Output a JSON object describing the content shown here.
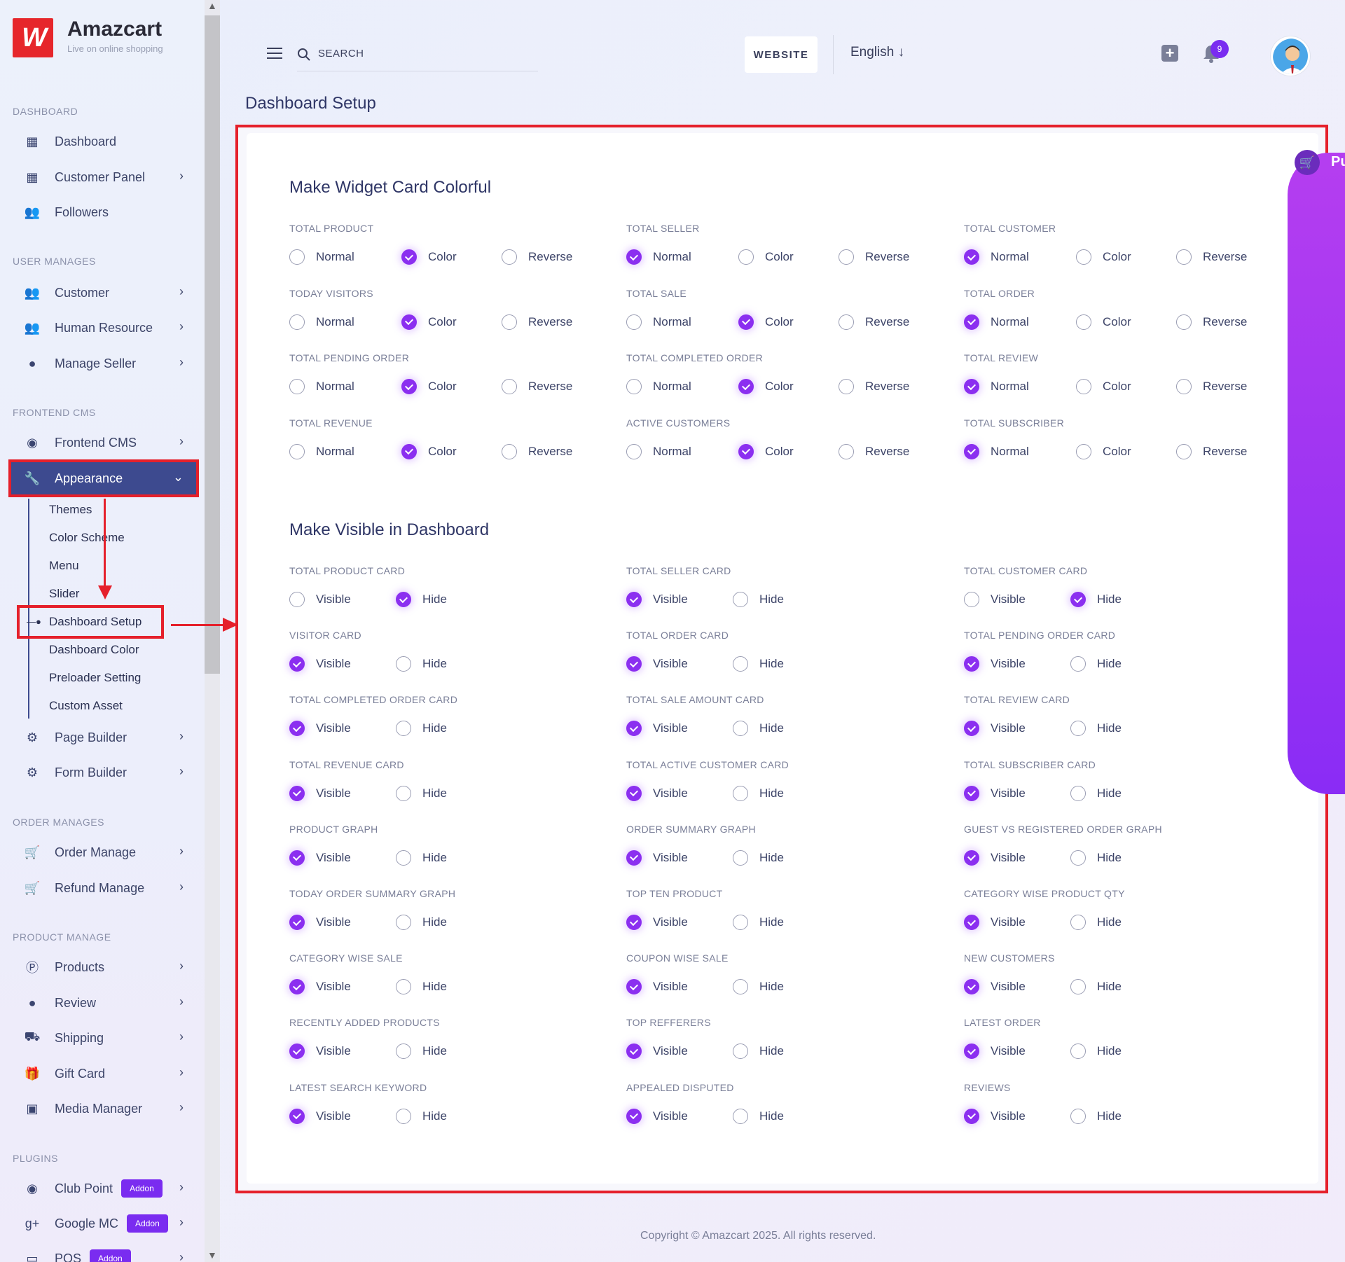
{
  "brand": {
    "name": "Amazcart",
    "tagline": "Live on online shopping",
    "logo_mark": "W"
  },
  "sidebar": {
    "sections": [
      {
        "title": "DASHBOARD",
        "items": [
          {
            "label": "Dashboard",
            "icon": "grid-icon"
          },
          {
            "label": "Customer Panel",
            "icon": "grid-icon",
            "chevron": true
          },
          {
            "label": "Followers",
            "icon": "users-icon"
          }
        ]
      },
      {
        "title": "USER MANAGES",
        "items": [
          {
            "label": "Customer",
            "icon": "users-icon",
            "chevron": true
          },
          {
            "label": "Human Resource",
            "icon": "users-icon",
            "chevron": true
          },
          {
            "label": "Manage Seller",
            "icon": "user-icon",
            "chevron": true
          }
        ]
      },
      {
        "title": "FRONTEND CMS",
        "items": [
          {
            "label": "Frontend CMS",
            "icon": "eye-icon",
            "chevron": true
          },
          {
            "label": "Appearance",
            "icon": "wrench-icon",
            "chevron": true,
            "active": true
          }
        ]
      }
    ],
    "appearance_sub": [
      "Themes",
      "Color Scheme",
      "Menu",
      "Slider",
      "Dashboard Setup",
      "Dashboard Color",
      "Preloader Setting",
      "Custom Asset"
    ],
    "after_appearance": [
      {
        "label": "Page Builder",
        "icon": "gears-icon"
      },
      {
        "label": "Form Builder",
        "icon": "gears-icon"
      }
    ],
    "order_title": "ORDER MANAGES",
    "order_items": [
      {
        "label": "Order Manage",
        "icon": "cart-icon"
      },
      {
        "label": "Refund Manage",
        "icon": "cart-icon"
      }
    ],
    "product_title": "PRODUCT MANAGE",
    "product_items": [
      {
        "label": "Products",
        "icon": "p-circle-icon"
      },
      {
        "label": "Review",
        "icon": "user-icon"
      },
      {
        "label": "Shipping",
        "icon": "truck-icon"
      },
      {
        "label": "Gift Card",
        "icon": "gift-icon"
      },
      {
        "label": "Media Manager",
        "icon": "image-icon"
      }
    ],
    "plugins_title": "PLUGINS",
    "plugin_items": [
      {
        "label": "Club Point",
        "icon": "eye-icon",
        "addon": "Addon"
      },
      {
        "label": "Google MC",
        "icon": "google-plus-icon",
        "addon": "Addon"
      },
      {
        "label": "POS",
        "icon": "pos-icon",
        "addon": "Addon"
      }
    ]
  },
  "header": {
    "search_placeholder": "SEARCH",
    "website_label": "WEBSITE",
    "language": "English",
    "notification_count": "9"
  },
  "page_title": "Dashboard Setup",
  "side_tab_text": "Pu",
  "widget_section": {
    "title": "Make Widget Card Colorful",
    "options": [
      "Normal",
      "Color",
      "Reverse"
    ],
    "fields": [
      {
        "label": "TOTAL PRODUCT",
        "selected": 1
      },
      {
        "label": "TOTAL SELLER",
        "selected": 0
      },
      {
        "label": "TOTAL CUSTOMER",
        "selected": 0
      },
      {
        "label": "TODAY VISITORS",
        "selected": 1
      },
      {
        "label": "TOTAL SALE",
        "selected": 1
      },
      {
        "label": "TOTAL ORDER",
        "selected": 0
      },
      {
        "label": "TOTAL PENDING ORDER",
        "selected": 1
      },
      {
        "label": "TOTAL COMPLETED ORDER",
        "selected": 1
      },
      {
        "label": "TOTAL REVIEW",
        "selected": 0
      },
      {
        "label": "TOTAL REVENUE",
        "selected": 1
      },
      {
        "label": "ACTIVE CUSTOMERS",
        "selected": 1
      },
      {
        "label": "TOTAL SUBSCRIBER",
        "selected": 0
      }
    ]
  },
  "visible_section": {
    "title": "Make Visible in Dashboard",
    "options": [
      "Visible",
      "Hide"
    ],
    "fields": [
      {
        "label": "TOTAL PRODUCT CARD",
        "selected": 1
      },
      {
        "label": "TOTAL SELLER CARD",
        "selected": 0
      },
      {
        "label": "TOTAL CUSTOMER CARD",
        "selected": 1
      },
      {
        "label": "VISITOR CARD",
        "selected": 0
      },
      {
        "label": "TOTAL ORDER CARD",
        "selected": 0
      },
      {
        "label": "TOTAL PENDING ORDER CARD",
        "selected": 0
      },
      {
        "label": "TOTAL COMPLETED ORDER CARD",
        "selected": 0
      },
      {
        "label": "TOTAL SALE AMOUNT CARD",
        "selected": 0
      },
      {
        "label": "TOTAL REVIEW CARD",
        "selected": 0
      },
      {
        "label": "TOTAL REVENUE CARD",
        "selected": 0
      },
      {
        "label": "TOTAL ACTIVE CUSTOMER CARD",
        "selected": 0
      },
      {
        "label": "TOTAL SUBSCRIBER CARD",
        "selected": 0
      },
      {
        "label": "PRODUCT GRAPH",
        "selected": 0
      },
      {
        "label": "ORDER SUMMARY GRAPH",
        "selected": 0
      },
      {
        "label": "GUEST VS REGISTERED ORDER GRAPH",
        "selected": 0
      },
      {
        "label": "TODAY ORDER SUMMARY GRAPH",
        "selected": 0
      },
      {
        "label": "TOP TEN PRODUCT",
        "selected": 0
      },
      {
        "label": "CATEGORY WISE PRODUCT QTY",
        "selected": 0
      },
      {
        "label": "CATEGORY WISE SALE",
        "selected": 0
      },
      {
        "label": "COUPON WISE SALE",
        "selected": 0
      },
      {
        "label": "NEW CUSTOMERS",
        "selected": 0
      },
      {
        "label": "RECENTLY ADDED PRODUCTS",
        "selected": 0
      },
      {
        "label": "TOP REFFERERS",
        "selected": 0
      },
      {
        "label": "LATEST ORDER",
        "selected": 0
      },
      {
        "label": "LATEST SEARCH KEYWORD",
        "selected": 0
      },
      {
        "label": "APPEALED DISPUTED",
        "selected": 0
      },
      {
        "label": "REVIEWS",
        "selected": 0
      }
    ]
  },
  "footer": "Copyright © Amazcart 2025. All rights reserved.",
  "colors": {
    "accent": "#8b2ff0",
    "active_nav": "#3d4a8f",
    "highlight": "#e5202b"
  }
}
